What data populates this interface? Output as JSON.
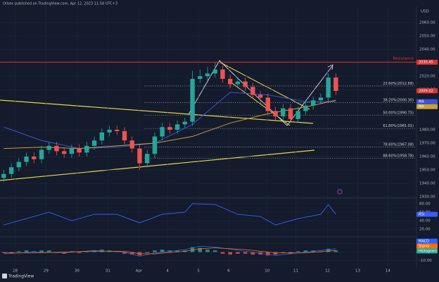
{
  "chart_data": [
    {
      "type": "candlestick",
      "title": "Orbex published on TradingView.com, Apr 12, 2023 11:58 UTC+3",
      "currency": "USD",
      "branding": "TradingView",
      "up_color": "#26a69a",
      "down_color": "#ef5350",
      "xlim": [
        -0.5,
        54.5
      ],
      "ylim": [
        1929.5,
        2071.6
      ],
      "xticks": [
        {
          "value": 1.5,
          "label": "28"
        },
        {
          "value": 5.6,
          "label": "29"
        },
        {
          "value": 9.7,
          "label": "30"
        },
        {
          "value": 13.8,
          "label": "31"
        },
        {
          "value": 17.9,
          "label": "Apr"
        },
        {
          "value": 21.7,
          "label": "4"
        },
        {
          "value": 25.8,
          "label": "5"
        },
        {
          "value": 29.8,
          "label": "6"
        },
        {
          "value": 34.9,
          "label": "10"
        },
        {
          "value": 38.7,
          "label": "11"
        },
        {
          "value": 42.9,
          "label": "12"
        },
        {
          "value": 46.9,
          "label": "13"
        },
        {
          "value": 50.9,
          "label": "14"
        }
      ],
      "yticks": [
        {
          "value": 2060,
          "label": "2060.00"
        },
        {
          "value": 2050,
          "label": "2050.00"
        },
        {
          "value": 2040,
          "label": "2040.00"
        },
        {
          "value": 2020,
          "label": "2020.00"
        },
        {
          "value": 2010,
          "label": "2010.00"
        },
        {
          "value": 1980,
          "label": "1980.00"
        },
        {
          "value": 1970,
          "label": "1970.00"
        },
        {
          "value": 1960,
          "label": "1960.00"
        },
        {
          "value": 1950,
          "label": "1950.00"
        },
        {
          "value": 1940,
          "label": "1940.00"
        },
        {
          "value": 1930,
          "label": "1930.00"
        }
      ],
      "x": [
        0,
        1,
        2,
        3,
        4,
        5,
        6,
        7,
        8,
        9,
        10,
        11,
        12,
        13,
        14,
        15,
        16,
        17,
        18,
        19,
        20,
        21,
        22,
        23,
        24,
        25,
        26,
        27,
        28,
        29,
        30,
        31,
        32,
        33,
        34,
        35,
        36,
        37,
        38,
        39,
        40,
        41,
        42,
        43,
        44
      ],
      "open": [
        1944,
        1947,
        1952,
        1956,
        1960,
        1958,
        1965,
        1968,
        1964,
        1962,
        1966,
        1963,
        1968,
        1972,
        1978,
        1980,
        1979,
        1972,
        1966,
        1955,
        1962,
        1975,
        1982,
        1980,
        1984,
        1986,
        2018,
        2020,
        2022,
        2025,
        2018,
        2014,
        2016,
        2012,
        2006,
        2004,
        1994,
        1990,
        1996,
        1988,
        1994,
        1998,
        2002,
        2004,
        2019
      ],
      "high": [
        1950,
        1955,
        1959,
        1963,
        1963,
        1968,
        1971,
        1971,
        1967,
        1969,
        1969,
        1971,
        1975,
        1981,
        1983,
        1983,
        1982,
        1975,
        1969,
        1965,
        1978,
        1985,
        1985,
        1987,
        1989,
        2024,
        2025,
        2027,
        2030,
        2028,
        2021,
        2019,
        2019,
        2015,
        2009,
        2007,
        1997,
        1999,
        1999,
        1997,
        2001,
        2005,
        2007,
        2022,
        2022
      ],
      "low": [
        1941,
        1944,
        1949,
        1953,
        1955,
        1955,
        1962,
        1961,
        1959,
        1959,
        1960,
        1960,
        1965,
        1969,
        1975,
        1976,
        1969,
        1963,
        1950,
        1952,
        1959,
        1972,
        1977,
        1977,
        1981,
        1983,
        2015,
        2017,
        2019,
        2015,
        2011,
        2011,
        2009,
        2003,
        2001,
        1991,
        1987,
        1987,
        1985,
        1985,
        1991,
        1995,
        1999,
        2001,
        2006
      ],
      "close": [
        1947,
        1952,
        1956,
        1960,
        1958,
        1965,
        1968,
        1964,
        1962,
        1966,
        1963,
        1968,
        1972,
        1978,
        1980,
        1979,
        1972,
        1966,
        1955,
        1962,
        1975,
        1982,
        1980,
        1984,
        1986,
        2018,
        2020,
        2022,
        2025,
        2018,
        2014,
        2016,
        2012,
        2006,
        2004,
        1994,
        1990,
        1996,
        1988,
        1994,
        1998,
        2002,
        2004,
        2019,
        2009
      ],
      "moving_averages": [
        {
          "name": "MA",
          "color": "#3f51d6",
          "x": [
            0,
            5,
            10,
            15,
            20,
            25,
            30,
            35,
            40,
            44
          ],
          "values": [
            1982,
            1972,
            1966,
            1967,
            1970,
            1984,
            2008,
            2006,
            2001,
            2001
          ]
        },
        {
          "name": "MA",
          "color": "#c9a03a",
          "x": [
            0,
            5,
            10,
            15,
            20,
            25,
            30,
            35,
            40,
            44
          ],
          "values": [
            1966,
            1967,
            1966,
            1968,
            1970,
            1975,
            1985,
            1992,
            1997,
            2002
          ]
        }
      ],
      "fib_levels": [
        {
          "value": 2012.68,
          "label": "23.60%(2012.68)"
        },
        {
          "value": 2000.3,
          "label": "38.20%(2000.30)"
        },
        {
          "value": 1990.75,
          "label": "50.00%(1990.75)"
        },
        {
          "value": 1981.01,
          "label": "61.80%(1981.01)"
        },
        {
          "value": 1967.08,
          "label": "78.60%(1967.08)"
        },
        {
          "value": 1958.78,
          "label": "88.60%(1958.78)"
        }
      ],
      "resistance": {
        "text": "Resistance",
        "value": 2030.45,
        "color": "#e0342f"
      },
      "last_price": {
        "value": 2009.02,
        "color": "#e0342f"
      }
    },
    {
      "type": "line",
      "name": "RSI",
      "color": "#3d5afe",
      "ylim": [
        5.4,
        89.7
      ],
      "yticks": [
        {
          "value": 80,
          "label": "80.00"
        },
        {
          "value": 60,
          "label": "60.00"
        },
        {
          "value": 40,
          "label": "40.00"
        },
        {
          "value": 20,
          "label": "20.00"
        }
      ],
      "x": [
        0,
        3,
        6,
        9,
        12,
        15,
        18,
        21,
        24,
        25,
        28,
        31,
        34,
        36,
        39,
        42,
        43,
        44
      ],
      "values": [
        30,
        45,
        60,
        40,
        55,
        55,
        35,
        55,
        60,
        80,
        78,
        55,
        50,
        30,
        45,
        55,
        78,
        55
      ]
    },
    {
      "type": "macd",
      "ylim": [
        -18,
        15.6
      ],
      "yticks": [
        {
          "value": 10,
          "label": "10.00"
        },
        {
          "value": 0,
          "label": "0.00"
        },
        {
          "value": -10,
          "label": "-10.00"
        }
      ],
      "histogram": {
        "name": "Histogram",
        "up_color": "#26a69a",
        "down_color": "#ef5350",
        "values": [
          -1,
          -2,
          1,
          2,
          1,
          2,
          2,
          -1,
          -2,
          1,
          -1,
          1,
          2,
          3,
          2,
          1,
          -2,
          -3,
          -4,
          -1,
          2,
          3,
          2,
          2,
          2,
          6,
          5,
          3,
          2,
          -2,
          -3,
          -2,
          -2,
          -3,
          -3,
          -4,
          -3,
          -1,
          -2,
          1,
          2,
          2,
          1,
          4,
          2
        ]
      },
      "series": [
        {
          "name": "MACD",
          "color": "#2962ff",
          "x": [
            0,
            4,
            8,
            12,
            16,
            18,
            20,
            24,
            26,
            28,
            32,
            36,
            40,
            44
          ],
          "values": [
            -2,
            0,
            -1,
            2,
            0,
            -5,
            -1,
            3,
            7,
            6,
            1,
            -4,
            0,
            4
          ]
        },
        {
          "name": "Signal",
          "color": "#ff6d00",
          "x": [
            0,
            4,
            8,
            12,
            16,
            18,
            20,
            24,
            26,
            28,
            32,
            36,
            40,
            44
          ],
          "values": [
            -1,
            -1,
            0,
            1,
            1,
            -2,
            -2,
            1,
            4,
            5,
            3,
            -1,
            -1,
            2
          ]
        }
      ]
    }
  ]
}
